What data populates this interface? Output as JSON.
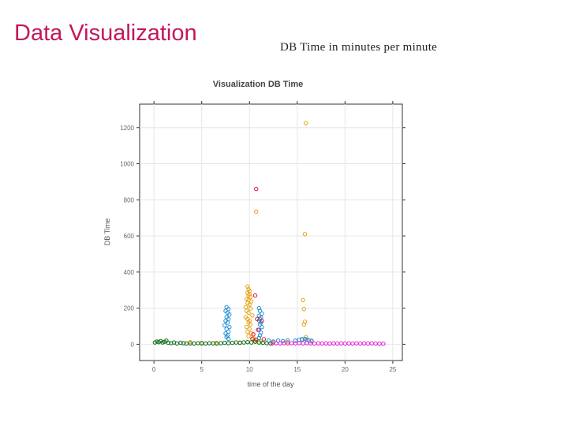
{
  "slide": {
    "title": "Data Visualization",
    "caption": "DB Time in minutes per minute"
  },
  "chart_data": {
    "type": "scatter",
    "title": "Visualization DB Time",
    "xlabel": "time of the day",
    "ylabel": "DB Time",
    "xlim": [
      -1.5,
      26
    ],
    "ylim": [
      -90,
      1330
    ],
    "xticks": [
      0,
      5,
      10,
      15,
      20,
      25
    ],
    "yticks": [
      0,
      200,
      400,
      600,
      800,
      1000,
      1200
    ],
    "grid": true,
    "colors": {
      "orange": "#e8a317",
      "blue": "#1f8fd6",
      "red": "#e0132a",
      "green": "#0e6b1a",
      "magenta": "#e81fd8"
    },
    "series": [
      {
        "color": "orange",
        "points": [
          [
            15.9,
            1225
          ],
          [
            10.7,
            735
          ],
          [
            15.8,
            610
          ],
          [
            9.8,
            320
          ],
          [
            9.9,
            305
          ],
          [
            10.0,
            295
          ],
          [
            9.8,
            285
          ],
          [
            10.0,
            278
          ],
          [
            9.9,
            270
          ],
          [
            10.1,
            262
          ],
          [
            9.7,
            250
          ],
          [
            9.9,
            245
          ],
          [
            10.2,
            238
          ],
          [
            9.8,
            228
          ],
          [
            10.0,
            220
          ],
          [
            9.6,
            205
          ],
          [
            10.1,
            198
          ],
          [
            9.7,
            185
          ],
          [
            9.9,
            175
          ],
          [
            10.3,
            160
          ],
          [
            9.6,
            150
          ],
          [
            9.8,
            140
          ],
          [
            10.0,
            130
          ],
          [
            9.9,
            120
          ],
          [
            10.1,
            110
          ],
          [
            9.7,
            95
          ],
          [
            10.0,
            85
          ],
          [
            9.8,
            70
          ],
          [
            10.2,
            60
          ],
          [
            9.9,
            45
          ],
          [
            10.4,
            35
          ],
          [
            15.6,
            245
          ],
          [
            15.7,
            195
          ],
          [
            15.8,
            125
          ],
          [
            15.7,
            110
          ],
          [
            15.9,
            40
          ],
          [
            15.5,
            25
          ],
          [
            10.6,
            20
          ],
          [
            11.2,
            15
          ],
          [
            3.8,
            12
          ],
          [
            5.0,
            8
          ],
          [
            6.5,
            8
          ],
          [
            9.0,
            10
          ],
          [
            12.5,
            10
          ],
          [
            14.0,
            12
          ],
          [
            16.5,
            15
          ]
        ]
      },
      {
        "color": "blue",
        "points": [
          [
            7.6,
            205
          ],
          [
            7.8,
            195
          ],
          [
            7.5,
            185
          ],
          [
            7.7,
            175
          ],
          [
            7.9,
            165
          ],
          [
            7.6,
            150
          ],
          [
            7.8,
            140
          ],
          [
            7.5,
            130
          ],
          [
            7.7,
            120
          ],
          [
            7.4,
            105
          ],
          [
            7.9,
            95
          ],
          [
            7.6,
            85
          ],
          [
            7.8,
            70
          ],
          [
            7.5,
            60
          ],
          [
            7.7,
            50
          ],
          [
            7.6,
            40
          ],
          [
            7.8,
            30
          ],
          [
            11.0,
            200
          ],
          [
            11.1,
            185
          ],
          [
            11.3,
            170
          ],
          [
            11.0,
            158
          ],
          [
            11.2,
            148
          ],
          [
            11.1,
            140
          ],
          [
            11.0,
            132
          ],
          [
            11.2,
            120
          ],
          [
            11.1,
            110
          ],
          [
            11.3,
            95
          ],
          [
            11.0,
            80
          ],
          [
            11.2,
            65
          ],
          [
            11.1,
            50
          ],
          [
            11.0,
            35
          ],
          [
            12.0,
            20
          ],
          [
            12.5,
            15
          ],
          [
            13.0,
            20
          ],
          [
            13.5,
            18
          ],
          [
            14.0,
            22
          ],
          [
            14.8,
            20
          ],
          [
            15.2,
            25
          ],
          [
            15.5,
            28
          ],
          [
            15.8,
            30
          ],
          [
            16.0,
            25
          ],
          [
            16.2,
            22
          ],
          [
            16.5,
            20
          ]
        ]
      },
      {
        "color": "red",
        "points": [
          [
            10.7,
            860
          ],
          [
            10.6,
            270
          ],
          [
            10.8,
            140
          ],
          [
            11.3,
            130
          ],
          [
            10.9,
            80
          ],
          [
            10.3,
            30
          ],
          [
            10.7,
            25
          ],
          [
            11.5,
            28
          ],
          [
            10.4,
            55
          ]
        ]
      },
      {
        "color": "green",
        "points": [
          [
            0.1,
            10
          ],
          [
            0.3,
            15
          ],
          [
            0.5,
            12
          ],
          [
            0.7,
            18
          ],
          [
            0.9,
            10
          ],
          [
            1.1,
            14
          ],
          [
            1.3,
            20
          ],
          [
            1.5,
            8
          ],
          [
            1.8,
            6
          ],
          [
            2.1,
            10
          ],
          [
            2.4,
            5
          ],
          [
            2.8,
            8
          ],
          [
            3.1,
            6
          ],
          [
            3.4,
            4
          ],
          [
            3.8,
            5
          ],
          [
            4.2,
            4
          ],
          [
            4.6,
            6
          ],
          [
            5.0,
            5
          ],
          [
            5.4,
            4
          ],
          [
            5.8,
            6
          ],
          [
            6.2,
            5
          ],
          [
            6.6,
            4
          ],
          [
            7.0,
            6
          ],
          [
            7.4,
            8
          ],
          [
            7.8,
            6
          ],
          [
            8.2,
            8
          ],
          [
            8.6,
            10
          ],
          [
            9.0,
            8
          ],
          [
            9.4,
            10
          ],
          [
            9.8,
            12
          ],
          [
            10.2,
            10
          ],
          [
            10.6,
            14
          ],
          [
            11.0,
            10
          ],
          [
            11.4,
            8
          ],
          [
            11.8,
            6
          ],
          [
            12.2,
            5
          ]
        ]
      },
      {
        "color": "magenta",
        "points": [
          [
            12.4,
            5
          ],
          [
            12.8,
            6
          ],
          [
            13.2,
            5
          ],
          [
            13.6,
            6
          ],
          [
            14.0,
            5
          ],
          [
            14.4,
            6
          ],
          [
            14.8,
            5
          ],
          [
            15.2,
            6
          ],
          [
            15.6,
            5
          ],
          [
            16.0,
            6
          ],
          [
            16.4,
            5
          ],
          [
            16.8,
            4
          ],
          [
            17.2,
            5
          ],
          [
            17.6,
            4
          ],
          [
            18.0,
            5
          ],
          [
            18.4,
            4
          ],
          [
            18.8,
            5
          ],
          [
            19.2,
            4
          ],
          [
            19.6,
            5
          ],
          [
            20.0,
            4
          ],
          [
            20.4,
            5
          ],
          [
            20.8,
            4
          ],
          [
            21.2,
            5
          ],
          [
            21.6,
            4
          ],
          [
            22.0,
            5
          ],
          [
            22.4,
            4
          ],
          [
            22.8,
            5
          ],
          [
            23.2,
            4
          ],
          [
            23.6,
            3
          ],
          [
            24.0,
            3
          ]
        ]
      }
    ]
  }
}
